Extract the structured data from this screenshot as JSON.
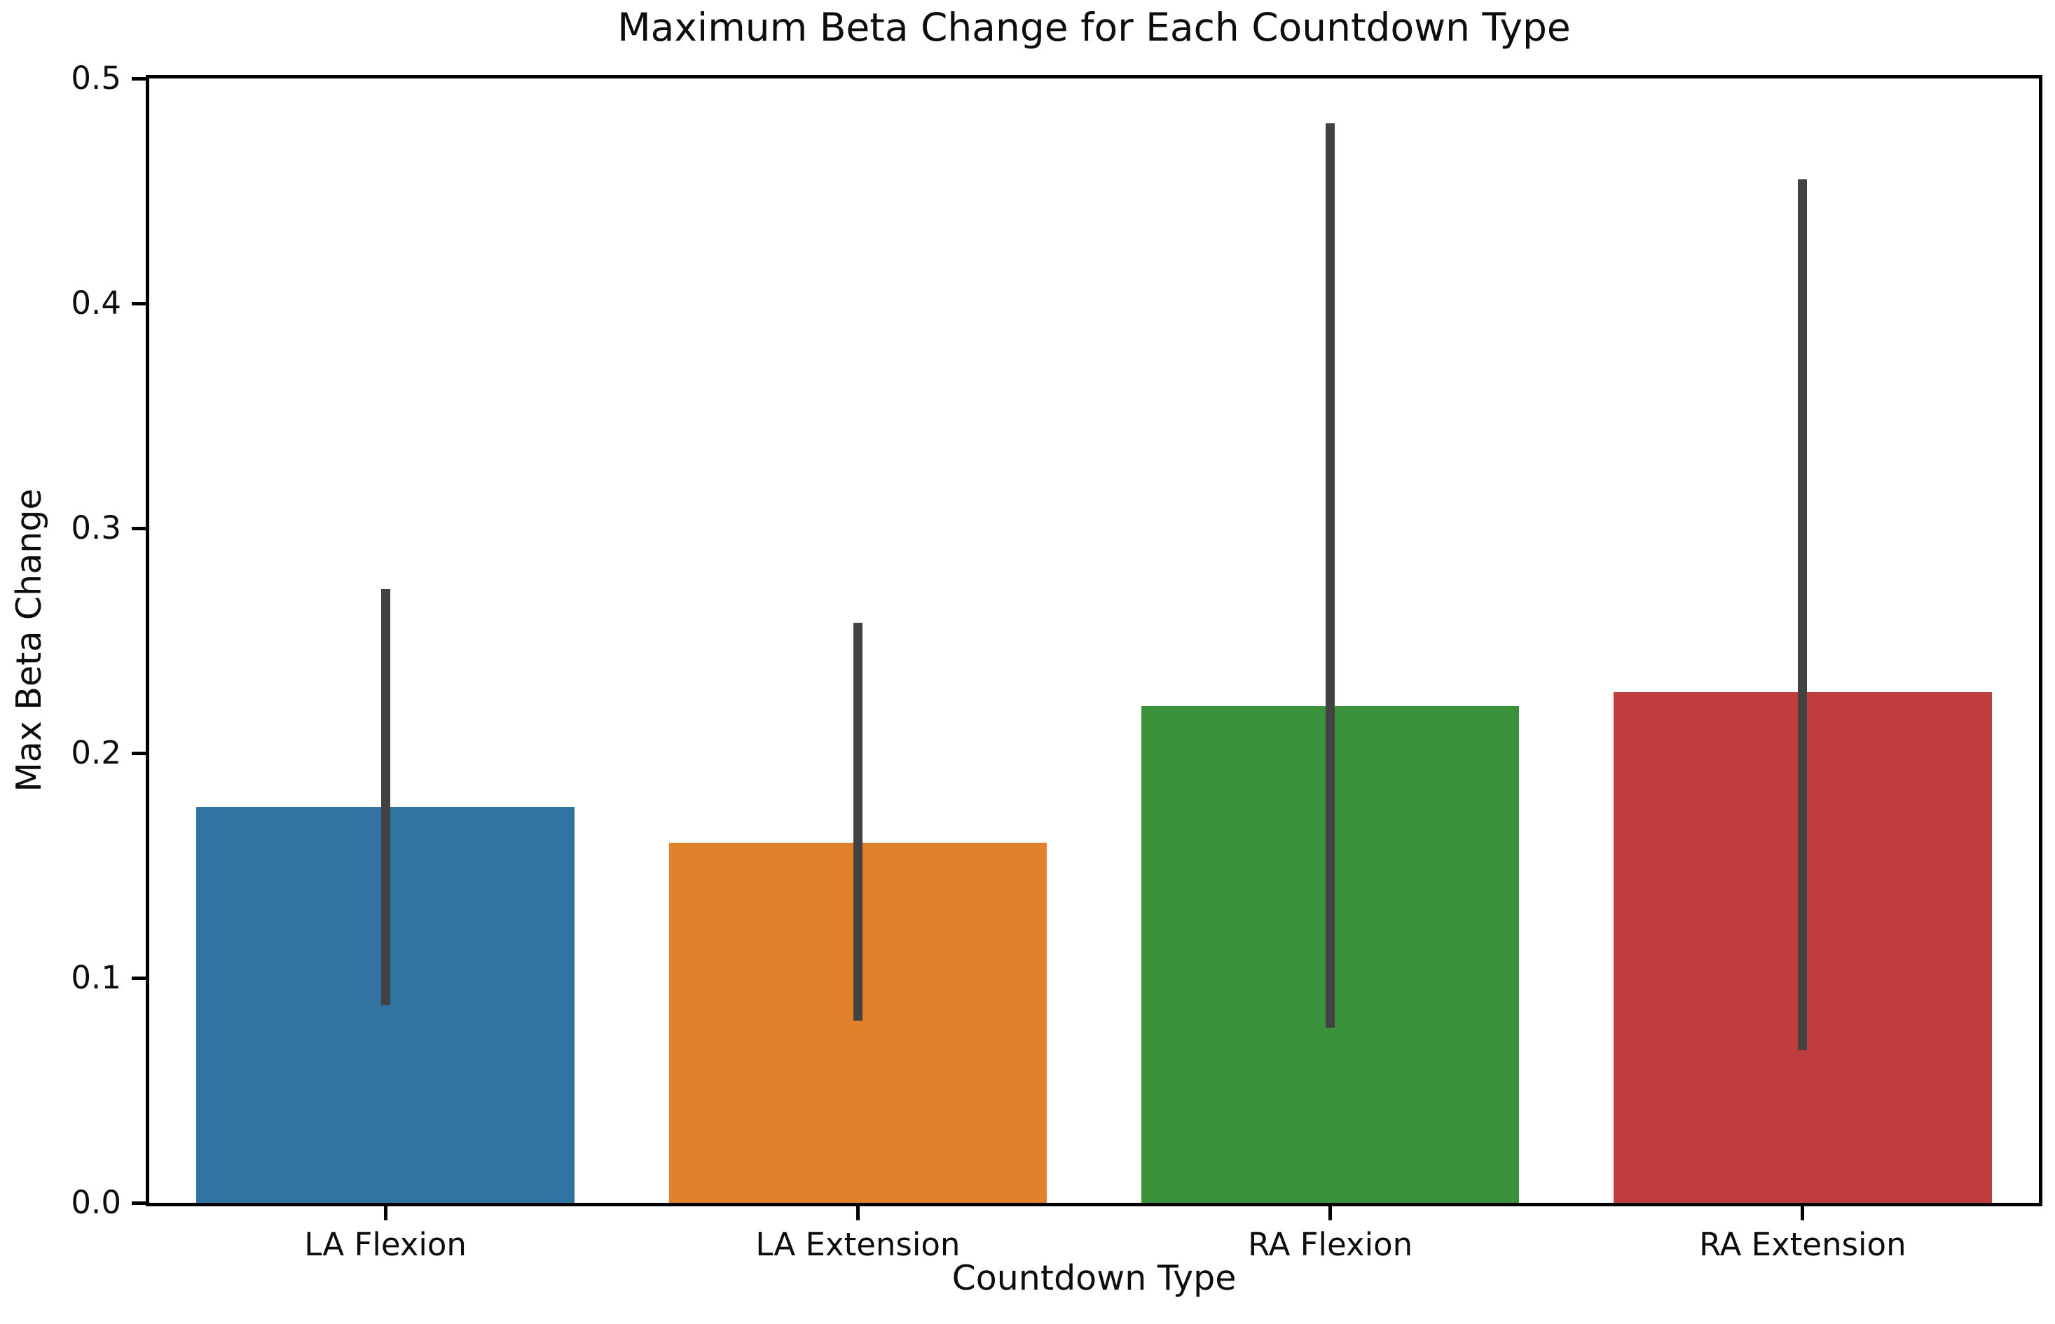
{
  "chart_data": {
    "type": "bar",
    "title": "Maximum Beta Change for Each Countdown Type",
    "xlabel": "Countdown Type",
    "ylabel": "Max Beta Change",
    "categories": [
      "LA Flexion",
      "LA Extension",
      "RA Flexion",
      "RA Extension"
    ],
    "values": [
      0.176,
      0.16,
      0.221,
      0.227
    ],
    "error_bars": [
      {
        "low": 0.088,
        "high": 0.273
      },
      {
        "low": 0.081,
        "high": 0.258
      },
      {
        "low": 0.078,
        "high": 0.48
      },
      {
        "low": 0.068,
        "high": 0.455
      }
    ],
    "bar_colors": [
      "#3274A1",
      "#E1812C",
      "#3A923A",
      "#C03D3E"
    ],
    "error_bar_color": "#424242",
    "ylim": [
      0.0,
      0.5
    ],
    "yticks": [
      "0.0",
      "0.1",
      "0.2",
      "0.3",
      "0.4",
      "0.5"
    ],
    "bar_width_fraction": 0.8,
    "grid": false,
    "legend_position": "none",
    "background_color": "#FFFFFF"
  }
}
